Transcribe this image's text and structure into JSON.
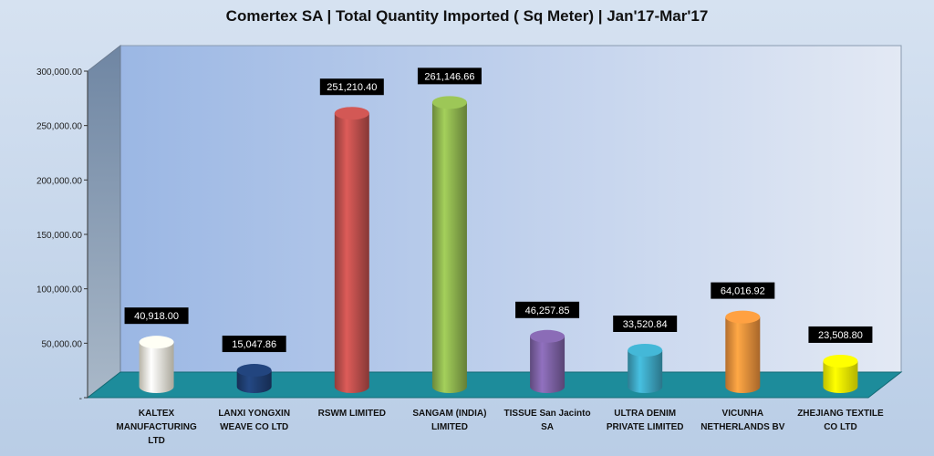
{
  "chart_data": {
    "type": "bar",
    "title": "Comertex SA | Total Quantity Imported  ( Sq Meter) | Jan'17-Mar'17",
    "categories": [
      "KALTEX MANUFACTURING LTD",
      "LANXI YONGXIN WEAVE CO LTD",
      "RSWM LIMITED",
      "SANGAM (INDIA) LIMITED",
      "TISSUE San Jacinto SA",
      "ULTRA DENIM PRIVATE LIMITED",
      "VICUNHA NETHERLANDS BV",
      "ZHEJIANG TEXTILE CO LTD"
    ],
    "category_lines": [
      [
        "KALTEX",
        "MANUFACTURING",
        "LTD"
      ],
      [
        "LANXI YONGXIN",
        "WEAVE CO LTD"
      ],
      [
        "RSWM LIMITED"
      ],
      [
        "SANGAM (INDIA)",
        "LIMITED"
      ],
      [
        "TISSUE San Jacinto",
        "SA"
      ],
      [
        "ULTRA DENIM",
        "PRIVATE LIMITED"
      ],
      [
        "VICUNHA",
        "NETHERLANDS BV"
      ],
      [
        "ZHEJIANG TEXTILE",
        "CO LTD"
      ]
    ],
    "values": [
      40918.0,
      15047.86,
      251210.4,
      261146.66,
      46257.85,
      33520.84,
      64016.92,
      23508.8
    ],
    "value_labels": [
      "40,918.00",
      "15,047.86",
      "251,210.40",
      "261,146.66",
      "46,257.85",
      "33,520.84",
      "64,016.92",
      "23,508.80"
    ],
    "bar_colors": [
      "#f4f0df",
      "#1f3f73",
      "#c0504d",
      "#8fb54f",
      "#7e62a6",
      "#3ea7c4",
      "#f0923c",
      "#ffff00"
    ],
    "ylim": [
      0,
      300000
    ],
    "yticks": [
      0,
      50000,
      100000,
      150000,
      200000,
      250000,
      300000
    ],
    "ytick_labels": [
      "-",
      "50,000.00",
      "100,000.00",
      "150,000.00",
      "200,000.00",
      "250,000.00",
      "300,000.00"
    ],
    "grid": false,
    "legend": "none"
  }
}
